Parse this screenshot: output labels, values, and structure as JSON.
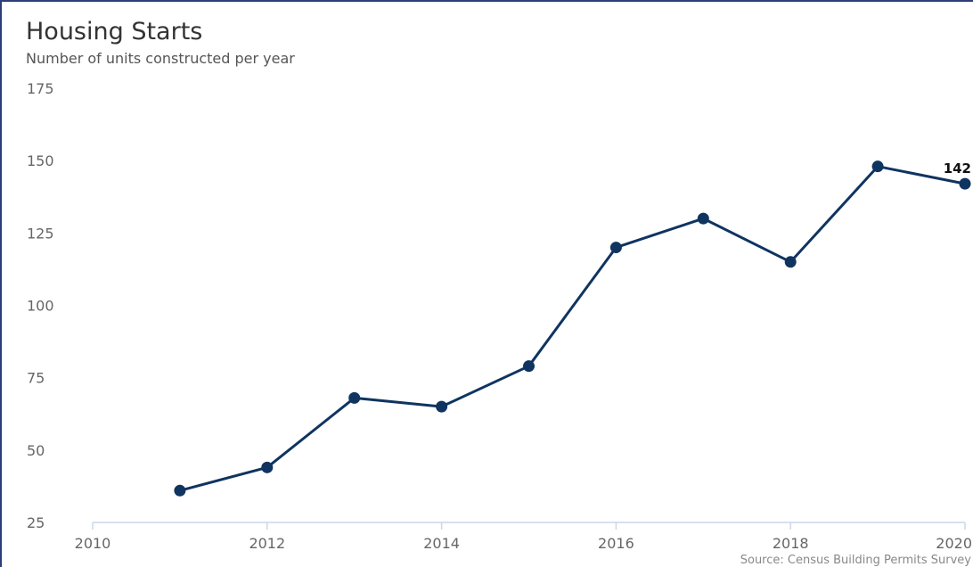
{
  "chart_data": {
    "type": "line",
    "title": "Housing Starts",
    "subtitle": "Number of units constructed per year",
    "source": "Source: Census Building Permits Survey",
    "xlabel": "",
    "ylabel": "",
    "xlim": [
      2010,
      2020
    ],
    "ylim": [
      25,
      175
    ],
    "xticks": [
      2010,
      2012,
      2014,
      2016,
      2018,
      2020
    ],
    "yticks": [
      175,
      150,
      125,
      100,
      75,
      50,
      25
    ],
    "grid": false,
    "legend": "none",
    "series": [
      {
        "color": "#0f3460",
        "points": [
          {
            "x": 2011,
            "y": 36
          },
          {
            "x": 2012,
            "y": 44
          },
          {
            "x": 2013,
            "y": 68
          },
          {
            "x": 2014,
            "y": 65
          },
          {
            "x": 2015,
            "y": 79
          },
          {
            "x": 2016,
            "y": 120
          },
          {
            "x": 2017,
            "y": 130
          },
          {
            "x": 2018,
            "y": 115
          },
          {
            "x": 2019,
            "y": 148
          },
          {
            "x": 2020,
            "y": 142
          }
        ]
      }
    ],
    "end_label": "142"
  },
  "colors": {
    "line": "#0f3460",
    "axis": "#ccd6eb",
    "frame": "#2c3e7a"
  }
}
